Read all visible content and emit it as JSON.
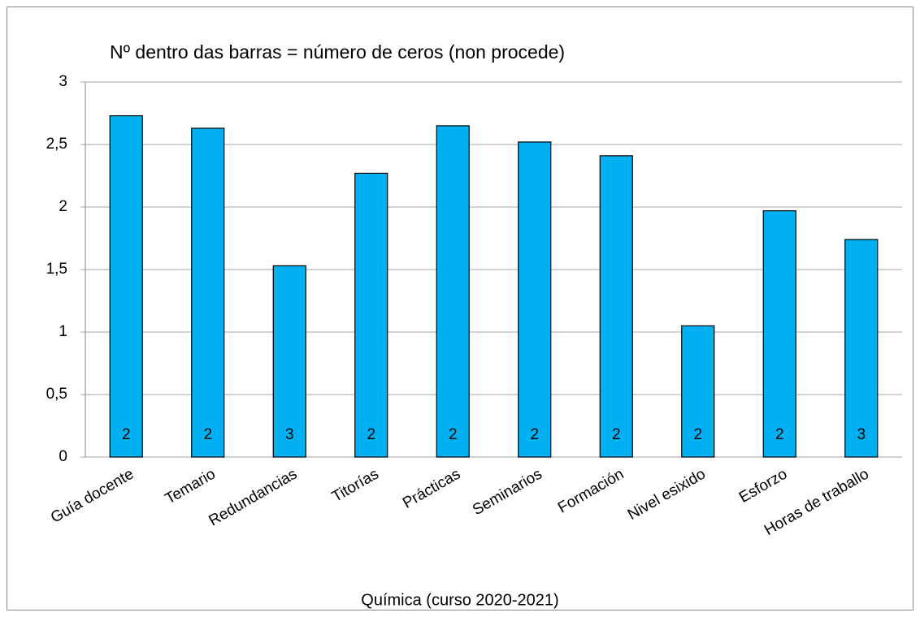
{
  "chart_data": {
    "type": "bar",
    "title": "Nº dentro das barras = número de ceros (non procede)",
    "x_label": "Química (curso 2020-2021)",
    "categories": [
      "Guía docente",
      "Temario",
      "Redundancias",
      "Titorías",
      "Prácticas",
      "Seminarios",
      "Formación",
      "Nivel esixido",
      "Esforzo",
      "Horas de traballo"
    ],
    "values": [
      2.73,
      2.63,
      1.53,
      2.27,
      2.65,
      2.52,
      2.41,
      1.05,
      1.97,
      1.74
    ],
    "bar_labels": [
      2,
      2,
      3,
      2,
      2,
      2,
      2,
      2,
      2,
      3
    ],
    "color": "#00b0f0",
    "ylim": [
      0,
      3
    ],
    "yticks": [
      0,
      {
        "value": 0.5,
        "label": "0,5"
      },
      1,
      {
        "value": 1.5,
        "label": "1,5"
      },
      2,
      {
        "value": 2.5,
        "label": "2,5"
      },
      3
    ],
    "grid": true
  }
}
